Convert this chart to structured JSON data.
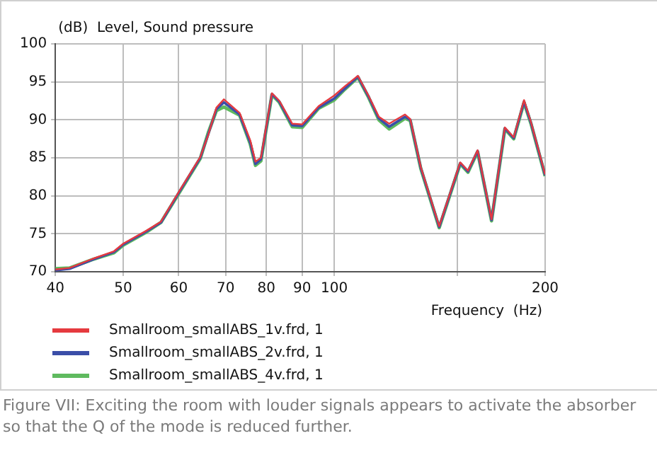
{
  "chart_data": {
    "type": "line",
    "ylabel": "(dB)  Level, Sound pressure",
    "xlabel": "Frequency  (Hz)",
    "log": "x",
    "xlim": [
      40,
      200
    ],
    "xticks": [
      40,
      50,
      60,
      70,
      80,
      90,
      100,
      {
        "value": 150,
        "label": null
      },
      200
    ],
    "ylim": [
      70,
      100
    ],
    "yticks": [
      70,
      75,
      80,
      85,
      90,
      95,
      100
    ],
    "grid": true,
    "legend": "bottom left",
    "marker": "none",
    "line_style": "solid",
    "x": [
      40,
      41.9,
      45.2,
      48.5,
      50,
      53.7,
      56.6,
      60,
      64.4,
      66.1,
      67.9,
      69.6,
      73.3,
      75.9,
      77.2,
      78.6,
      81.5,
      83.5,
      87.1,
      90,
      95,
      100,
      103.5,
      108.1,
      111.9,
      115.8,
      119.8,
      126.2,
      128.4,
      132.9,
      141.2,
      151.3,
      155.2,
      160.2,
      167.7,
      175.2,
      180.4,
      186.6,
      190.9,
      200
    ],
    "series": [
      {
        "name": "Smallroom_smallABS_1v.frd, 1",
        "color": "#e53a3f",
        "values": [
          70.3,
          70.5,
          71.7,
          72.7,
          73.7,
          75.3,
          76.6,
          80.5,
          85.1,
          88,
          91.6,
          92.7,
          90.9,
          87.3,
          84.5,
          85,
          93.5,
          92.5,
          89.5,
          89.4,
          91.8,
          93.2,
          94.4,
          95.8,
          93.2,
          90.4,
          89.5,
          90.7,
          90.1,
          83.8,
          76,
          84.4,
          83.3,
          86,
          76.9,
          89,
          87.7,
          92.6,
          89.7,
          82.8
        ]
      },
      {
        "name": "Smallroom_smallABS_2v.frd, 1",
        "color": "#3b4ea8",
        "values": [
          70.2,
          70.4,
          71.6,
          72.6,
          73.6,
          75.2,
          76.5,
          80.4,
          85,
          88.1,
          91.4,
          92.3,
          90.7,
          87,
          84.2,
          84.8,
          93.4,
          92.4,
          89.3,
          89.2,
          91.6,
          92.8,
          94.1,
          95.7,
          93.1,
          90.2,
          89.1,
          90.4,
          90,
          83.7,
          75.9,
          84.3,
          83.2,
          85.9,
          76.8,
          88.9,
          87.6,
          92.4,
          89.6,
          82.7
        ]
      },
      {
        "name": "Smallroom_smallABS_4v.frd, 1",
        "color": "#5fba5f",
        "values": [
          70.4,
          70.5,
          71.6,
          72.5,
          73.5,
          75.1,
          76.5,
          80.3,
          84.9,
          88.3,
          91.2,
          91.7,
          90.6,
          86.8,
          84,
          84.6,
          93.3,
          92.3,
          89.1,
          89,
          91.5,
          92.6,
          94,
          95.6,
          93,
          90,
          88.8,
          90.2,
          89.9,
          83.6,
          75.8,
          84.2,
          83.1,
          85.8,
          76.7,
          88.8,
          87.5,
          92.3,
          89.5,
          82.6
        ]
      }
    ],
    "annotations": [
      "Figure VII: Exciting the room with louder signals appears to activate the absorber so that the Q of the mode is reduced further."
    ]
  }
}
